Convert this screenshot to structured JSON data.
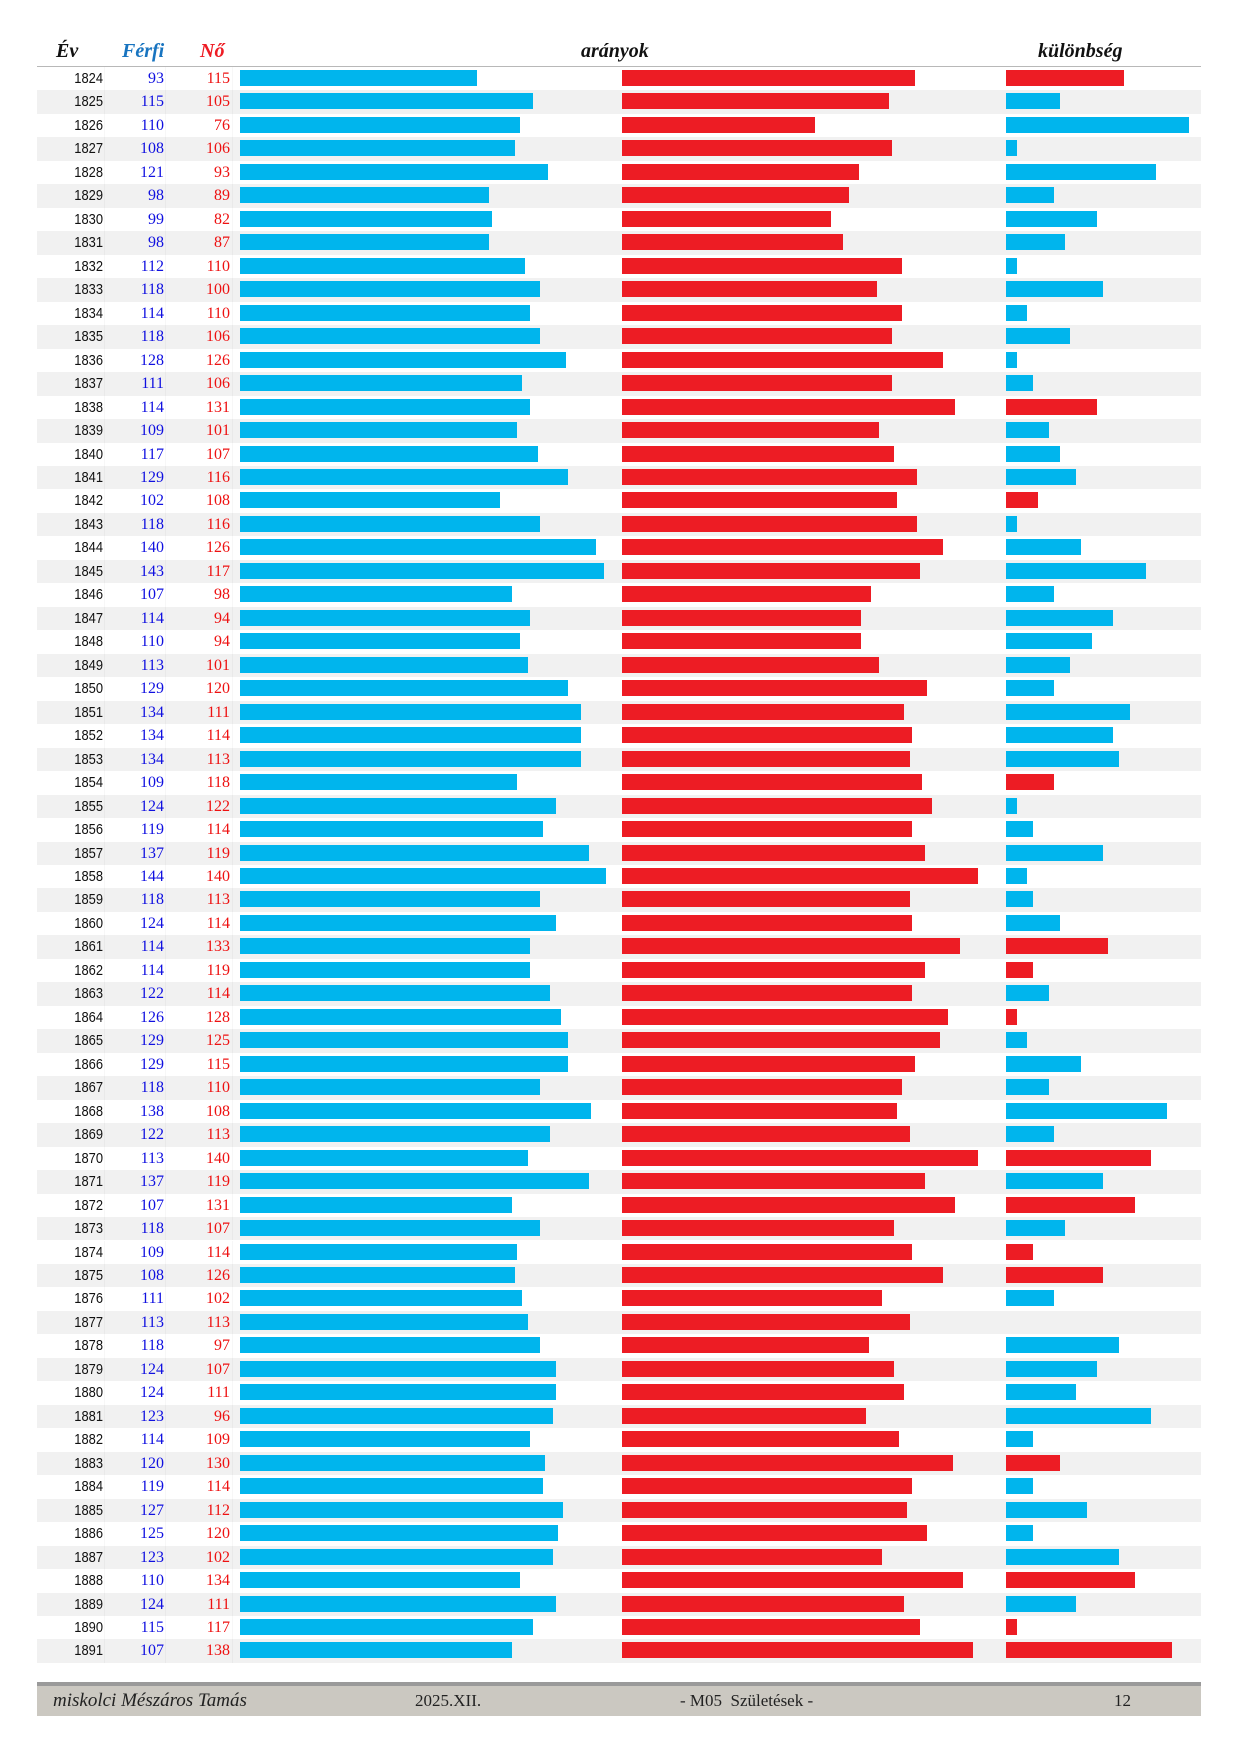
{
  "header": {
    "year_label": "Év",
    "male_label": "Férfi",
    "female_label": "Nő",
    "ratio_label": "arányok",
    "diff_label": "különbség"
  },
  "colors": {
    "male": "#00b5ed",
    "female": "#ed1c24",
    "male_text": "#1010e0",
    "female_text": "#ee1111",
    "male_header": "#1874c0"
  },
  "chart_data": {
    "type": "bar",
    "title": "",
    "columns": [
      "Év",
      "Férfi",
      "Nő",
      "arányok",
      "különbség"
    ],
    "series": [
      {
        "name": "Férfi",
        "color": "#00b5ed"
      },
      {
        "name": "Nő",
        "color": "#ed1c24"
      }
    ],
    "rows": [
      {
        "year": "1824",
        "male": 93,
        "female": 115
      },
      {
        "year": "1825",
        "male": 115,
        "female": 105
      },
      {
        "year": "1826",
        "male": 110,
        "female": 76
      },
      {
        "year": "1827",
        "male": 108,
        "female": 106
      },
      {
        "year": "1828",
        "male": 121,
        "female": 93
      },
      {
        "year": "1829",
        "male": 98,
        "female": 89
      },
      {
        "year": "1830",
        "male": 99,
        "female": 82
      },
      {
        "year": "1831",
        "male": 98,
        "female": 87
      },
      {
        "year": "1832",
        "male": 112,
        "female": 110
      },
      {
        "year": "1833",
        "male": 118,
        "female": 100
      },
      {
        "year": "1834",
        "male": 114,
        "female": 110
      },
      {
        "year": "1835",
        "male": 118,
        "female": 106
      },
      {
        "year": "1836",
        "male": 128,
        "female": 126
      },
      {
        "year": "1837",
        "male": 111,
        "female": 106
      },
      {
        "year": "1838",
        "male": 114,
        "female": 131
      },
      {
        "year": "1839",
        "male": 109,
        "female": 101
      },
      {
        "year": "1840",
        "male": 117,
        "female": 107
      },
      {
        "year": "1841",
        "male": 129,
        "female": 116
      },
      {
        "year": "1842",
        "male": 102,
        "female": 108
      },
      {
        "year": "1843",
        "male": 118,
        "female": 116
      },
      {
        "year": "1844",
        "male": 140,
        "female": 126
      },
      {
        "year": "1845",
        "male": 143,
        "female": 117
      },
      {
        "year": "1846",
        "male": 107,
        "female": 98
      },
      {
        "year": "1847",
        "male": 114,
        "female": 94
      },
      {
        "year": "1848",
        "male": 110,
        "female": 94
      },
      {
        "year": "1849",
        "male": 113,
        "female": 101
      },
      {
        "year": "1850",
        "male": 129,
        "female": 120
      },
      {
        "year": "1851",
        "male": 134,
        "female": 111
      },
      {
        "year": "1852",
        "male": 134,
        "female": 114
      },
      {
        "year": "1853",
        "male": 134,
        "female": 113
      },
      {
        "year": "1854",
        "male": 109,
        "female": 118
      },
      {
        "year": "1855",
        "male": 124,
        "female": 122
      },
      {
        "year": "1856",
        "male": 119,
        "female": 114
      },
      {
        "year": "1857",
        "male": 137,
        "female": 119
      },
      {
        "year": "1858",
        "male": 144,
        "female": 140
      },
      {
        "year": "1859",
        "male": 118,
        "female": 113
      },
      {
        "year": "1860",
        "male": 124,
        "female": 114
      },
      {
        "year": "1861",
        "male": 114,
        "female": 133
      },
      {
        "year": "1862",
        "male": 114,
        "female": 119
      },
      {
        "year": "1863",
        "male": 122,
        "female": 114
      },
      {
        "year": "1864",
        "male": 126,
        "female": 128
      },
      {
        "year": "1865",
        "male": 129,
        "female": 125
      },
      {
        "year": "1866",
        "male": 129,
        "female": 115
      },
      {
        "year": "1867",
        "male": 118,
        "female": 110
      },
      {
        "year": "1868",
        "male": 138,
        "female": 108
      },
      {
        "year": "1869",
        "male": 122,
        "female": 113
      },
      {
        "year": "1870",
        "male": 113,
        "female": 140
      },
      {
        "year": "1871",
        "male": 137,
        "female": 119
      },
      {
        "year": "1872",
        "male": 107,
        "female": 131
      },
      {
        "year": "1873",
        "male": 118,
        "female": 107
      },
      {
        "year": "1874",
        "male": 109,
        "female": 114
      },
      {
        "year": "1875",
        "male": 108,
        "female": 126
      },
      {
        "year": "1876",
        "male": 111,
        "female": 102
      },
      {
        "year": "1877",
        "male": 113,
        "female": 113
      },
      {
        "year": "1878",
        "male": 118,
        "female": 97
      },
      {
        "year": "1879",
        "male": 124,
        "female": 107
      },
      {
        "year": "1880",
        "male": 124,
        "female": 111
      },
      {
        "year": "1881",
        "male": 123,
        "female": 96
      },
      {
        "year": "1882",
        "male": 114,
        "female": 109
      },
      {
        "year": "1883",
        "male": 120,
        "female": 130
      },
      {
        "year": "1884",
        "male": 119,
        "female": 114
      },
      {
        "year": "1885",
        "male": 127,
        "female": 112
      },
      {
        "year": "1886",
        "male": 125,
        "female": 120
      },
      {
        "year": "1887",
        "male": 123,
        "female": 102
      },
      {
        "year": "1888",
        "male": 110,
        "female": 134
      },
      {
        "year": "1889",
        "male": 124,
        "female": 111
      },
      {
        "year": "1890",
        "male": 115,
        "female": 117
      },
      {
        "year": "1891",
        "male": 107,
        "female": 138
      }
    ]
  },
  "footer": {
    "author": "miskolci Mészáros Tamás",
    "date": "2025.XII.",
    "title": "- M05  Születések -",
    "page": "12"
  }
}
